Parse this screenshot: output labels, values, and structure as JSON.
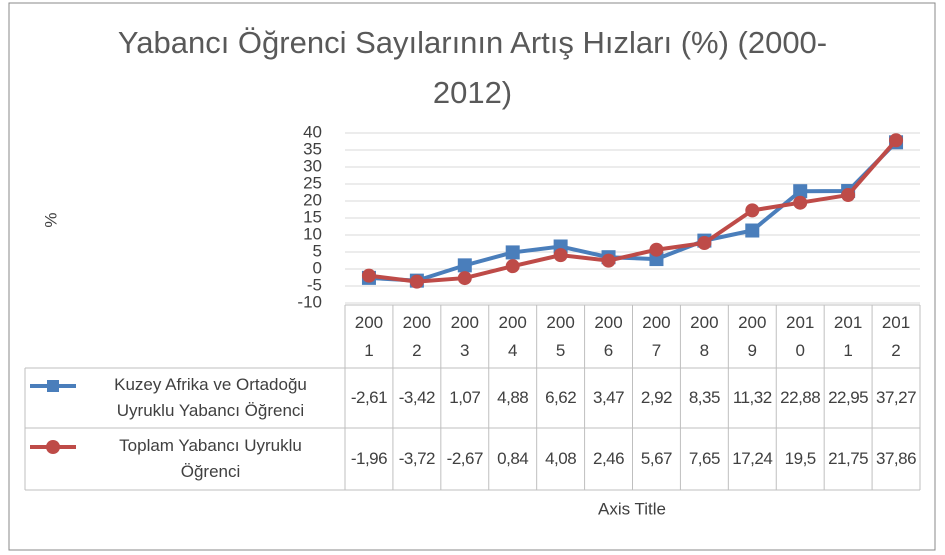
{
  "chart_data": {
    "type": "line",
    "title": "Yabancı Öğrenci Sayılarının Artış Hızları (%) (2000-2012)",
    "y_label": "%",
    "x_label": "Axis Title",
    "categories": [
      "2001",
      "2002",
      "2003",
      "2004",
      "2005",
      "2006",
      "2007",
      "2008",
      "2009",
      "2010",
      "2011",
      "2012"
    ],
    "series": [
      {
        "name": "Kuzey Afrika ve Ortadoğu Uyruklu Yabancı Öğrenci",
        "color": "#4a7ebb",
        "marker": "square",
        "values": [
          -2.61,
          -3.42,
          1.07,
          4.88,
          6.62,
          3.47,
          2.92,
          8.35,
          11.32,
          22.88,
          22.95,
          37.27
        ],
        "value_labels": [
          "-2,61",
          "-3,42",
          "1,07",
          "4,88",
          "6,62",
          "3,47",
          "2,92",
          "8,35",
          "11,32",
          "22,88",
          "22,95",
          "37,27"
        ]
      },
      {
        "name": "Toplam Yabancı Uyruklu Öğrenci",
        "color": "#be4b48",
        "marker": "circle",
        "values": [
          -1.96,
          -3.72,
          -2.67,
          0.84,
          4.08,
          2.46,
          5.67,
          7.65,
          17.24,
          19.5,
          21.75,
          37.86
        ],
        "value_labels": [
          "-1,96",
          "-3,72",
          "-2,67",
          "0,84",
          "4,08",
          "2,46",
          "5,67",
          "7,65",
          "17,24",
          "19,5",
          "21,75",
          "37,86"
        ]
      }
    ],
    "ylim": [
      -10,
      40
    ],
    "yticks": [
      -10,
      -5,
      0,
      5,
      10,
      15,
      20,
      25,
      30,
      35,
      40
    ],
    "grid": true
  }
}
